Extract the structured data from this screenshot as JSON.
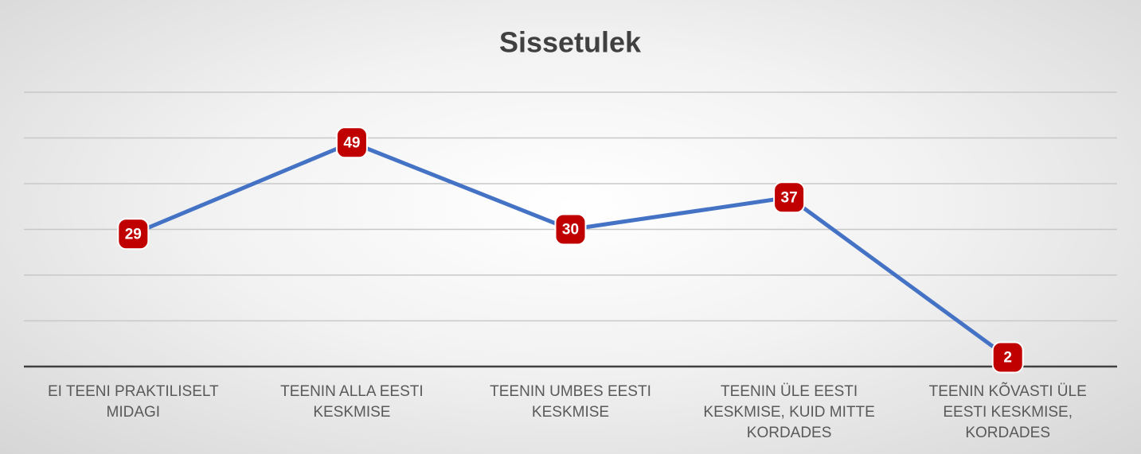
{
  "chart_data": {
    "type": "line",
    "title": "Sissetulek",
    "categories": [
      "EI TEENI PRAKTILISELT MIDAGI",
      "TEENIN ALLA EESTI KESKMISE",
      "TEENIN UMBES EESTI KESKMISE",
      "TEENIN ÜLE EESTI KESKMISE, KUID MITTE KORDADES",
      "TEENIN KÕVASTI ÜLE EESTI KESKMISE, KORDADES"
    ],
    "series": [
      {
        "name": "Sissetulek",
        "color": "#4472c4",
        "values": [
          29,
          49,
          30,
          37,
          2
        ]
      }
    ],
    "marker_color": "#c00000",
    "ylim": [
      0,
      60
    ],
    "yticks": [
      0,
      10,
      20,
      30,
      40,
      50,
      60
    ],
    "grid": true
  }
}
